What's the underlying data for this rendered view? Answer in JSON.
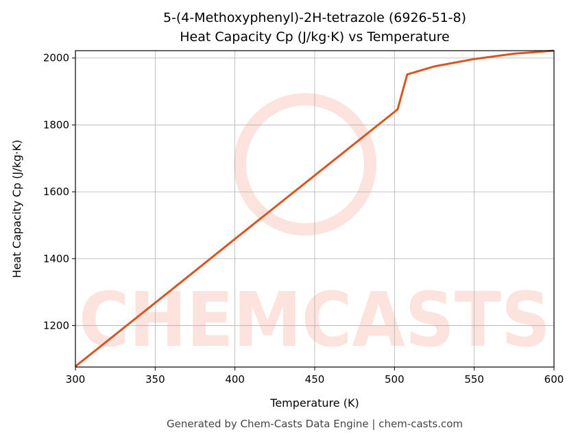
{
  "chart_data": {
    "type": "line",
    "title": "5-(4-Methoxyphenyl)-2H-tetrazole (6926-51-8)",
    "subtitle": "Heat Capacity Cp (J/kg·K) vs Temperature",
    "x_label": "Temperature (K)",
    "y_label": "Heat Capacity Cp (J/kg·K)",
    "footer": "Generated by Chem-Casts Data Engine | chem-casts.com",
    "watermark": "CHEMCASTS",
    "x": [
      300,
      350,
      400,
      450,
      500,
      502,
      508,
      525,
      550,
      575,
      600
    ],
    "values": [
      1078,
      1268,
      1459,
      1649,
      1839,
      1847,
      1951,
      1975,
      1997,
      2013,
      2022
    ],
    "color": "#d9541e",
    "xlim": [
      300,
      600
    ],
    "xticks": [
      300,
      350,
      400,
      450,
      500,
      550,
      600
    ],
    "ylim": [
      1076,
      2022
    ],
    "yticks": [
      1200,
      1400,
      1600,
      1800,
      2000
    ],
    "grid": true
  }
}
